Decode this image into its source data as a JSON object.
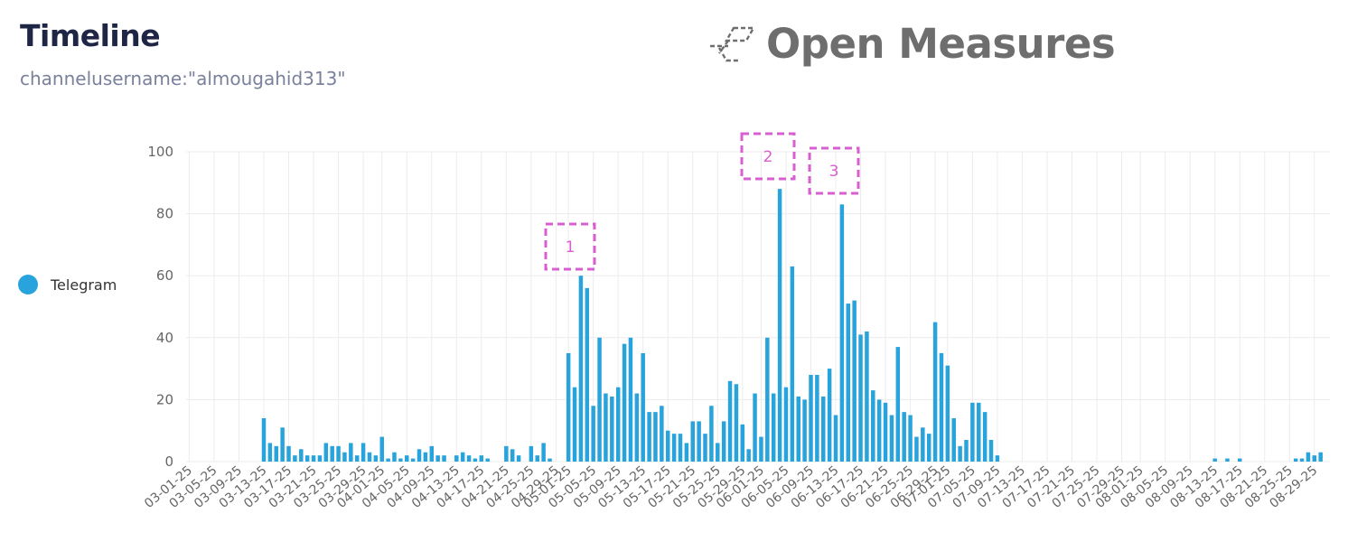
{
  "header": {
    "title": "Timeline",
    "query": "channelusername:\"almougahid313\""
  },
  "brand": {
    "name": "Open Measures",
    "icon": "open-measures-logo-icon"
  },
  "legend": {
    "items": [
      {
        "label": "Telegram",
        "color": "#29a3db"
      }
    ]
  },
  "annotations": [
    {
      "label": "1",
      "date": "05-03-25"
    },
    {
      "label": "2",
      "date": "06-04-25"
    },
    {
      "label": "3",
      "date": "06-14-25"
    }
  ],
  "colors": {
    "bar": "#29a3db",
    "annotation": "#d85fcf",
    "grid": "#ececec",
    "title": "#1f2544",
    "subtitle": "#7a819c"
  },
  "chart_data": {
    "type": "bar",
    "title": "Timeline",
    "subtitle": "channelusername:\"almougahid313\"",
    "xlabel": "",
    "ylabel": "",
    "ylim": [
      0,
      100
    ],
    "yticks": [
      0,
      20,
      40,
      60,
      80,
      100
    ],
    "grid": true,
    "legend_position": "left",
    "xtick_labels": [
      "03-01-25",
      "03-05-25",
      "03-09-25",
      "03-13-25",
      "03-17-25",
      "03-21-25",
      "03-25-25",
      "03-29-25",
      "04-01-25",
      "04-05-25",
      "04-09-25",
      "04-13-25",
      "04-17-25",
      "04-21-25",
      "04-25-25",
      "04-29-25",
      "05-01-25",
      "05-05-25",
      "05-09-25",
      "05-13-25",
      "05-17-25",
      "05-21-25",
      "05-25-25",
      "05-29-25",
      "06-01-25",
      "06-05-25",
      "06-09-25",
      "06-13-25",
      "06-17-25",
      "06-21-25",
      "06-25-25",
      "06-29-25",
      "07-01-25",
      "07-05-25",
      "07-09-25",
      "07-13-25",
      "07-17-25",
      "07-21-25",
      "07-25-25",
      "07-29-25",
      "08-01-25",
      "08-05-25",
      "08-09-25",
      "08-13-25",
      "08-17-25",
      "08-21-25",
      "08-25-25",
      "08-29-25"
    ],
    "start_date": "03-01-25",
    "end_date": "08-31-25",
    "series": [
      {
        "name": "Telegram",
        "color": "#29a3db",
        "values": [
          0,
          0,
          0,
          0,
          0,
          0,
          0,
          0,
          0,
          0,
          0,
          0,
          14,
          6,
          5,
          11,
          5,
          2,
          4,
          2,
          2,
          2,
          6,
          5,
          5,
          3,
          6,
          2,
          6,
          3,
          2,
          8,
          1,
          3,
          1,
          2,
          1,
          4,
          3,
          5,
          2,
          2,
          0,
          2,
          3,
          2,
          1,
          2,
          1,
          0,
          0,
          5,
          4,
          2,
          0,
          5,
          2,
          6,
          1,
          0,
          0,
          35,
          24,
          60,
          56,
          18,
          40,
          22,
          21,
          24,
          38,
          40,
          22,
          35,
          16,
          16,
          18,
          10,
          9,
          9,
          6,
          13,
          13,
          9,
          18,
          6,
          13,
          26,
          25,
          12,
          4,
          22,
          8,
          40,
          22,
          88,
          24,
          63,
          21,
          20,
          28,
          28,
          21,
          30,
          15,
          83,
          51,
          52,
          41,
          42,
          23,
          20,
          19,
          15,
          37,
          16,
          15,
          8,
          11,
          9,
          45,
          35,
          31,
          14,
          5,
          7,
          19,
          19,
          16,
          7,
          2,
          0,
          0,
          0,
          0,
          0,
          0,
          0,
          0,
          0,
          0,
          0,
          0,
          0,
          0,
          0,
          0,
          0,
          0,
          0,
          0,
          0,
          0,
          0,
          0,
          0,
          0,
          0,
          0,
          0,
          0,
          0,
          0,
          0,
          0,
          1,
          0,
          1,
          0,
          1,
          0,
          0,
          0,
          0,
          0,
          0,
          0,
          0,
          1,
          1,
          3,
          2,
          3,
          0
        ]
      }
    ]
  }
}
